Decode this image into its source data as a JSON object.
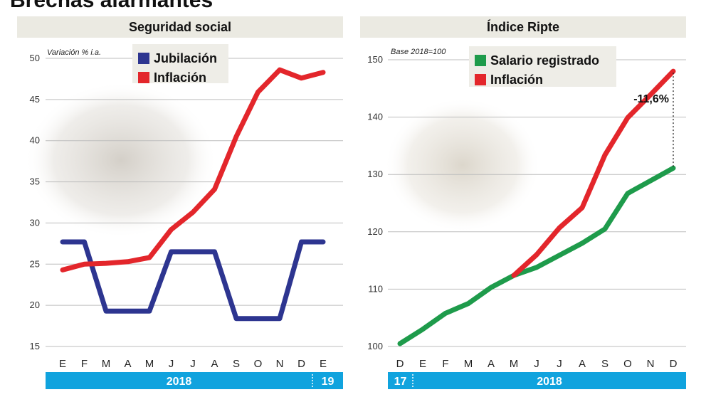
{
  "headline": "Brechas alarmantes",
  "colors": {
    "blue": "#2d3590",
    "red": "#e3262b",
    "green": "#1e9b4b",
    "band": "#10a3de",
    "grid": "#bdbdbd",
    "title_bg": "#ebeae2"
  },
  "chart_data": [
    {
      "type": "line",
      "title": "Seguridad social",
      "note": "Variación % i.a.",
      "ylim": [
        15,
        50
      ],
      "yticks": [
        "15",
        "20",
        "25",
        "30",
        "35",
        "40",
        "45",
        "50"
      ],
      "x": [
        "E",
        "F",
        "M",
        "A",
        "M",
        "J",
        "J",
        "A",
        "S",
        "O",
        "N",
        "D",
        "E"
      ],
      "years": [
        "2018",
        "19"
      ],
      "grid": true,
      "legend": "top-left",
      "series": [
        {
          "name": "Jubilación",
          "color": "#2d3590",
          "values": [
            27.7,
            27.7,
            19.3,
            19.3,
            19.3,
            26.5,
            26.5,
            26.5,
            18.4,
            18.4,
            18.4,
            27.7,
            27.7
          ]
        },
        {
          "name": "Inflación",
          "color": "#e3262b",
          "values": [
            24.3,
            25.0,
            25.1,
            25.3,
            25.8,
            29.2,
            31.3,
            34.1,
            40.5,
            45.9,
            48.6,
            47.6,
            48.3
          ]
        }
      ]
    },
    {
      "type": "line",
      "title": "Índice Ripte",
      "note": "Base 2018=100",
      "ylim": [
        100,
        150
      ],
      "yticks": [
        "100",
        "110",
        "120",
        "130",
        "140",
        "150"
      ],
      "x": [
        "D",
        "E",
        "F",
        "M",
        "A",
        "M",
        "J",
        "J",
        "A",
        "S",
        "O",
        "N",
        "D"
      ],
      "years": [
        "17",
        "2018"
      ],
      "grid": true,
      "legend": "top-center",
      "annotation": "-11,6%",
      "series": [
        {
          "name": "Salario registrado",
          "color": "#1e9b4b",
          "values": [
            100.5,
            103.0,
            105.8,
            107.5,
            110.3,
            112.4,
            113.8,
            115.9,
            118.0,
            120.5,
            126.7,
            128.9,
            131.1
          ]
        },
        {
          "name": "Inflación",
          "color": "#e3262b",
          "values": [
            null,
            null,
            null,
            null,
            null,
            112.4,
            116.0,
            120.7,
            124.2,
            133.4,
            139.9,
            143.9,
            148.0
          ]
        }
      ]
    }
  ]
}
